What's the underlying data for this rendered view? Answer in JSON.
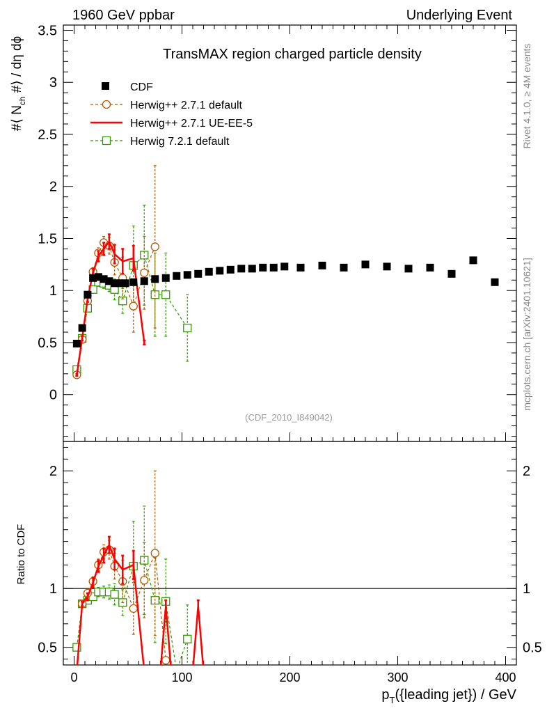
{
  "header": {
    "left": "1960 GeV ppbar",
    "right": "Underlying Event"
  },
  "side_text": {
    "top": "Rivet 4.1.0, ≥ 4M events",
    "bottom": "mcplots.cern.ch [arXiv:2401.10621]"
  },
  "chart_data": {
    "type": "scatter",
    "title": "TransMAX region charged particle density",
    "watermark": "(CDF_2010_I849042)",
    "xlabel": "p_T({leading jet}) / GeV",
    "ylabel": "#⟨ N_ch #⟩ / dη dϕ",
    "ratio_ylabel": "Ratio to CDF",
    "xlim": [
      -10,
      410
    ],
    "ylim": [
      -0.45,
      3.55
    ],
    "ratio_ylim": [
      0.35,
      2.25
    ],
    "xticks": [
      0,
      100,
      200,
      300,
      400
    ],
    "yticks": [
      0,
      0.5,
      1,
      1.5,
      2,
      2.5,
      3,
      3.5
    ],
    "ratio_yticks": [
      0.5,
      1,
      2
    ],
    "legend": [
      "CDF",
      "Herwig++ 2.7.1 default",
      "Herwig++ 2.7.1 UE-EE-5",
      "Herwig 7.2.1 default"
    ],
    "colors": {
      "data": "#000000",
      "hw271": "#b35c00",
      "ueee5": "#ff0000",
      "hw721": "#339900"
    },
    "data": {
      "x": [
        2.5,
        7.5,
        12.5,
        17.5,
        22.5,
        27.5,
        32.5,
        37.5,
        42.5,
        47.5,
        55,
        65,
        75,
        85,
        95,
        105,
        115,
        125,
        135,
        145,
        155,
        165,
        175,
        185,
        195,
        210,
        230,
        250,
        270,
        290,
        310,
        330,
        350,
        370,
        390
      ],
      "y": [
        0.49,
        0.64,
        0.96,
        1.12,
        1.13,
        1.11,
        1.09,
        1.07,
        1.07,
        1.07,
        1.08,
        1.09,
        1.11,
        1.12,
        1.14,
        1.15,
        1.16,
        1.18,
        1.19,
        1.2,
        1.21,
        1.21,
        1.22,
        1.22,
        1.23,
        1.22,
        1.24,
        1.22,
        1.25,
        1.23,
        1.21,
        1.22,
        1.16,
        1.29,
        1.08
      ]
    },
    "series": [
      {
        "name": "Herwig++ 2.7.1 default",
        "x": [
          2.5,
          7.5,
          12.5,
          17.5,
          22.5,
          27.5,
          32.5,
          37.5,
          45,
          55,
          65,
          75
        ],
        "y": [
          0.19,
          0.53,
          0.9,
          1.18,
          1.36,
          1.46,
          1.43,
          1.27,
          1.12,
          0.85,
          1.17,
          1.42
        ],
        "err": [
          0.01,
          0.02,
          0.03,
          0.04,
          0.05,
          0.06,
          0.08,
          0.12,
          0.2,
          0.25,
          0.35,
          0.78
        ]
      },
      {
        "name": "Herwig++ 2.7.1 UE-EE-5",
        "x": [
          2.5,
          7.5,
          12.5,
          17.5,
          22.5,
          27.5,
          32.5,
          37.5,
          45,
          55,
          65
        ],
        "y": [
          0.19,
          0.54,
          0.92,
          1.17,
          1.33,
          1.4,
          1.47,
          1.35,
          1.28,
          1.31,
          0.5
        ],
        "err": [
          0.01,
          0.02,
          0.03,
          0.04,
          0.05,
          0.06,
          0.07,
          0.09,
          0.12,
          0.12,
          0.02
        ]
      },
      {
        "name": "Herwig 7.2.1 default",
        "x": [
          2.5,
          7.5,
          12.5,
          17.5,
          22.5,
          27.5,
          32.5,
          37.5,
          45,
          55,
          65,
          75,
          85,
          105
        ],
        "y": [
          0.24,
          0.54,
          0.83,
          1.01,
          1.08,
          1.07,
          1.05,
          1.01,
          0.9,
          1.24,
          1.34,
          0.96,
          0.96,
          0.64
        ],
        "err": [
          0.01,
          0.02,
          0.03,
          0.03,
          0.04,
          0.05,
          0.06,
          0.1,
          0.12,
          0.38,
          0.48,
          0.4,
          0.4,
          0.32
        ]
      }
    ],
    "ratio_series": [
      {
        "name": "Herwig++ 2.7.1 default",
        "x": [
          7.5,
          12.5,
          17.5,
          22.5,
          27.5,
          32.5,
          37.5,
          45,
          55,
          65,
          75,
          85
        ],
        "y": [
          0.87,
          0.96,
          1.06,
          1.2,
          1.31,
          1.33,
          1.19,
          1.06,
          0.83,
          1.07,
          1.3,
          0.39
        ],
        "err": [
          0.02,
          0.03,
          0.04,
          0.05,
          0.06,
          0.08,
          0.11,
          0.18,
          0.22,
          0.32,
          0.7,
          0.02
        ]
      },
      {
        "name": "Herwig++ 2.7.1 UE-EE-5",
        "x": [
          2.5,
          7.5,
          12.5,
          17.5,
          22.5,
          27.5,
          32.5,
          37.5,
          45,
          55,
          65,
          75,
          80,
          85,
          90,
          100,
          105,
          110,
          115,
          120,
          125
        ],
        "y": [
          0.3,
          0.87,
          0.93,
          1.05,
          1.19,
          1.28,
          1.37,
          1.25,
          1.16,
          1.2,
          0.3,
          0.3,
          0.3,
          0.85,
          0.3,
          0.3,
          0.3,
          0.3,
          0.85,
          0.3,
          0.3
        ],
        "err": [
          0.01,
          0.02,
          0.03,
          0.04,
          0.05,
          0.06,
          0.07,
          0.09,
          0.12,
          0.12,
          0,
          0,
          0,
          0.05,
          0,
          0,
          0,
          0,
          0.05,
          0,
          0
        ]
      },
      {
        "name": "Herwig 7.2.1 default",
        "x": [
          2.5,
          7.5,
          12.5,
          17.5,
          22.5,
          27.5,
          32.5,
          37.5,
          45,
          55,
          65,
          75,
          85,
          95,
          105
        ],
        "y": [
          0.5,
          0.87,
          0.9,
          0.93,
          0.97,
          0.97,
          0.97,
          0.95,
          0.88,
          1.19,
          1.24,
          0.9,
          0.89,
          0.3,
          0.57
        ],
        "err": [
          0.01,
          0.02,
          0.03,
          0.03,
          0.04,
          0.05,
          0.06,
          0.09,
          0.11,
          0.38,
          0.46,
          0.36,
          0.36,
          0,
          0.29
        ]
      }
    ]
  }
}
